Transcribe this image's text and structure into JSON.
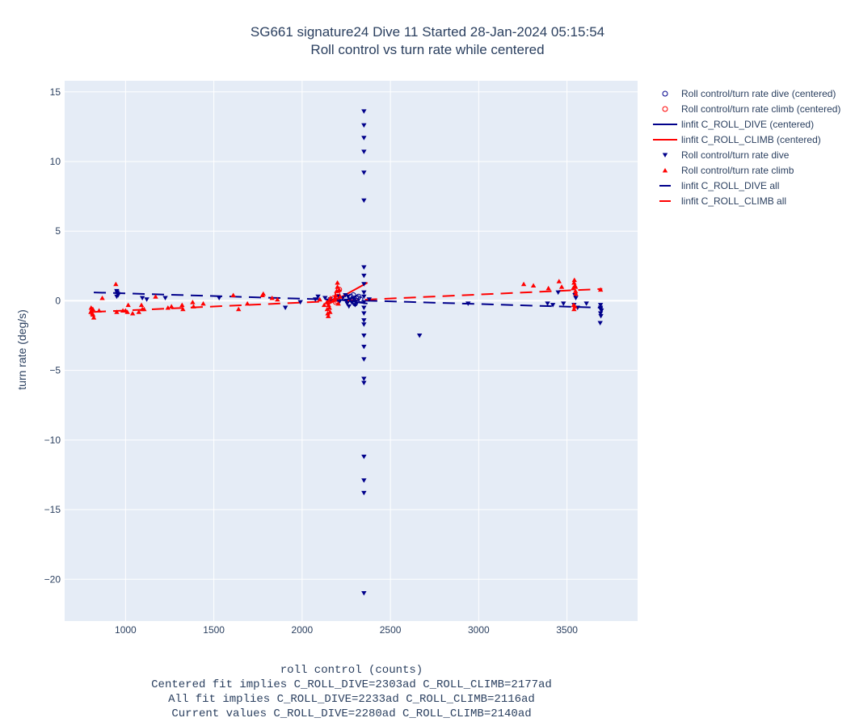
{
  "chart_data": {
    "type": "scatter",
    "title": "SG661 signature24 Dive 11 Started 28-Jan-2024 05:15:54",
    "subtitle": "Roll control vs turn rate while centered",
    "xlabel_lines": [
      "roll control (counts)",
      "Centered fit implies C_ROLL_DIVE=2303ad C_ROLL_CLIMB=2177ad",
      "All fit implies C_ROLL_DIVE=2233ad C_ROLL_CLIMB=2116ad",
      "Current values C_ROLL_DIVE=2280ad C_ROLL_CLIMB=2140ad"
    ],
    "ylabel": "turn rate (deg/s)",
    "xlim": [
      655,
      3900
    ],
    "ylim": [
      -23,
      15.8
    ],
    "x_ticks": [
      1000,
      1500,
      2000,
      2500,
      3000,
      3500
    ],
    "y_ticks": [
      15,
      10,
      5,
      0,
      -5,
      -10,
      -15,
      -20
    ],
    "grid": true,
    "legend_position": "right",
    "series": [
      {
        "name": "Roll control/turn rate dive (centered)",
        "kind": "marker",
        "symbol": "circle-open",
        "color": "#00008b",
        "points": [
          [
            2275,
            0.3
          ],
          [
            2285,
            0.1
          ],
          [
            2295,
            -0.1
          ],
          [
            2305,
            0.2
          ],
          [
            2310,
            0.0
          ],
          [
            2320,
            0.3
          ],
          [
            2330,
            0.1
          ],
          [
            2290,
            0.4
          ],
          [
            2300,
            -0.2
          ],
          [
            2315,
            0.2
          ]
        ]
      },
      {
        "name": "Roll control/turn rate climb (centered)",
        "kind": "marker",
        "symbol": "circle-open",
        "color": "#ff0000",
        "points": [
          [
            2180,
            0.2
          ],
          [
            2190,
            -0.1
          ],
          [
            2200,
            0.5
          ],
          [
            2205,
            0.3
          ],
          [
            2210,
            0.8
          ],
          [
            2195,
            0.0
          ]
        ]
      },
      {
        "name": "linfit C_ROLL_DIVE (centered)",
        "kind": "line",
        "dash": "solid",
        "color": "#00008b",
        "points": [
          [
            2200,
            0.1
          ],
          [
            2370,
            -0.2
          ]
        ]
      },
      {
        "name": "linfit C_ROLL_CLIMB (centered)",
        "kind": "line",
        "dash": "solid",
        "color": "#ff0000",
        "points": [
          [
            2140,
            -0.3
          ],
          [
            2370,
            1.3
          ]
        ]
      },
      {
        "name": "Roll control/turn rate dive",
        "kind": "marker",
        "symbol": "triangle-down",
        "color": "#00008b",
        "points": [
          [
            950,
            0.7
          ],
          [
            952,
            0.6
          ],
          [
            955,
            0.5
          ],
          [
            958,
            0.4
          ],
          [
            950,
            0.3
          ],
          [
            1095,
            0.2
          ],
          [
            1120,
            0.1
          ],
          [
            1225,
            0.2
          ],
          [
            1530,
            0.2
          ],
          [
            1905,
            -0.5
          ],
          [
            1990,
            -0.1
          ],
          [
            2075,
            0.1
          ],
          [
            2090,
            0.3
          ],
          [
            2130,
            0.2
          ],
          [
            2145,
            0.0
          ],
          [
            2160,
            0.1
          ],
          [
            2205,
            0.3
          ],
          [
            2210,
            -0.1
          ],
          [
            2230,
            0.2
          ],
          [
            2245,
            0.4
          ],
          [
            2250,
            0.0
          ],
          [
            2255,
            -0.2
          ],
          [
            2260,
            0.3
          ],
          [
            2265,
            -0.4
          ],
          [
            2270,
            0.1
          ],
          [
            2280,
            -0.1
          ],
          [
            2290,
            0.2
          ],
          [
            2300,
            -0.3
          ],
          [
            2350,
            13.6
          ],
          [
            2350,
            12.6
          ],
          [
            2350,
            11.7
          ],
          [
            2350,
            10.7
          ],
          [
            2350,
            9.2
          ],
          [
            2350,
            7.2
          ],
          [
            2350,
            2.4
          ],
          [
            2350,
            1.8
          ],
          [
            2350,
            1.2
          ],
          [
            2350,
            0.6
          ],
          [
            2350,
            0.3
          ],
          [
            2350,
            -0.1
          ],
          [
            2350,
            -0.5
          ],
          [
            2350,
            -0.9
          ],
          [
            2350,
            -1.4
          ],
          [
            2350,
            -1.7
          ],
          [
            2350,
            -2.5
          ],
          [
            2350,
            -3.3
          ],
          [
            2350,
            -4.2
          ],
          [
            2350,
            -5.6
          ],
          [
            2350,
            -5.9
          ],
          [
            2350,
            -11.2
          ],
          [
            2350,
            -12.9
          ],
          [
            2350,
            -13.8
          ],
          [
            2350,
            -21.0
          ],
          [
            2380,
            0.1
          ],
          [
            2665,
            -2.5
          ],
          [
            2940,
            -0.2
          ],
          [
            3390,
            -0.2
          ],
          [
            3420,
            -0.3
          ],
          [
            3450,
            0.6
          ],
          [
            3480,
            -0.2
          ],
          [
            3540,
            -0.3
          ],
          [
            3545,
            0.4
          ],
          [
            3550,
            0.2
          ],
          [
            3560,
            -0.5
          ],
          [
            3610,
            -0.2
          ],
          [
            3690,
            -0.3
          ],
          [
            3690,
            -0.6
          ],
          [
            3690,
            -0.9
          ],
          [
            3692,
            -1.1
          ],
          [
            3688,
            -1.6
          ],
          [
            3690,
            -0.5
          ],
          [
            3695,
            -0.7
          ]
        ]
      },
      {
        "name": "Roll control/turn rate climb",
        "kind": "marker",
        "symbol": "triangle-up",
        "color": "#ff0000",
        "points": [
          [
            805,
            -0.5
          ],
          [
            808,
            -0.7
          ],
          [
            810,
            -0.6
          ],
          [
            812,
            -0.9
          ],
          [
            815,
            -1.0
          ],
          [
            820,
            -1.2
          ],
          [
            803,
            -0.8
          ],
          [
            815,
            -0.6
          ],
          [
            850,
            -0.7
          ],
          [
            868,
            0.2
          ],
          [
            945,
            1.2
          ],
          [
            950,
            -0.8
          ],
          [
            985,
            -0.7
          ],
          [
            1000,
            -0.7
          ],
          [
            1010,
            -0.8
          ],
          [
            1015,
            -0.3
          ],
          [
            1040,
            -0.9
          ],
          [
            1075,
            -0.8
          ],
          [
            1090,
            -0.3
          ],
          [
            1095,
            -0.6
          ],
          [
            1105,
            -0.6
          ],
          [
            1170,
            0.3
          ],
          [
            1240,
            -0.5
          ],
          [
            1260,
            -0.4
          ],
          [
            1320,
            -0.3
          ],
          [
            1325,
            -0.6
          ],
          [
            1380,
            -0.1
          ],
          [
            1385,
            -0.4
          ],
          [
            1440,
            -0.2
          ],
          [
            1610,
            0.4
          ],
          [
            1640,
            -0.6
          ],
          [
            1690,
            -0.2
          ],
          [
            1775,
            0.4
          ],
          [
            1780,
            0.5
          ],
          [
            1830,
            0.2
          ],
          [
            1860,
            0.1
          ],
          [
            2100,
            0.1
          ],
          [
            2125,
            -0.3
          ],
          [
            2140,
            -0.1
          ],
          [
            2142,
            -0.6
          ],
          [
            2145,
            -0.9
          ],
          [
            2148,
            -1.1
          ],
          [
            2150,
            -0.3
          ],
          [
            2152,
            0.0
          ],
          [
            2155,
            -0.5
          ],
          [
            2158,
            -0.8
          ],
          [
            2160,
            0.2
          ],
          [
            2185,
            0.2
          ],
          [
            2190,
            0.4
          ],
          [
            2195,
            0.7
          ],
          [
            2200,
            1.0
          ],
          [
            2200,
            1.3
          ],
          [
            2205,
            -0.2
          ],
          [
            2210,
            0.8
          ],
          [
            2215,
            0.3
          ],
          [
            3255,
            1.2
          ],
          [
            3310,
            1.1
          ],
          [
            3395,
            0.9
          ],
          [
            3455,
            1.4
          ],
          [
            3470,
            1.0
          ],
          [
            3535,
            0.9
          ],
          [
            3540,
            1.3
          ],
          [
            3542,
            1.5
          ],
          [
            3545,
            1.1
          ],
          [
            3548,
            0.7
          ],
          [
            3550,
            0.5
          ],
          [
            3538,
            -0.3
          ],
          [
            3540,
            -0.6
          ],
          [
            3545,
            -0.4
          ],
          [
            3548,
            1.0
          ],
          [
            3690,
            0.8
          ]
        ]
      },
      {
        "name": "linfit C_ROLL_DIVE all",
        "kind": "line",
        "dash": "dash",
        "color": "#00008b",
        "points": [
          [
            820,
            0.6
          ],
          [
            3700,
            -0.5
          ]
        ]
      },
      {
        "name": "linfit C_ROLL_CLIMB all",
        "kind": "line",
        "dash": "dash",
        "color": "#ff0000",
        "points": [
          [
            820,
            -0.8
          ],
          [
            3700,
            0.85
          ]
        ]
      }
    ]
  }
}
